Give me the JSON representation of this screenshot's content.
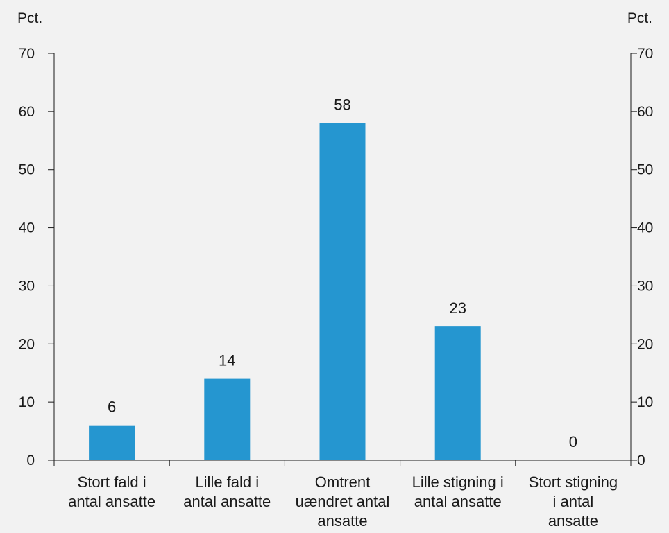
{
  "chart_data": {
    "type": "bar",
    "categories": [
      [
        "Stort fald i",
        "antal ansatte"
      ],
      [
        "Lille fald i",
        "antal ansatte"
      ],
      [
        "Omtrent",
        "uændret antal",
        "ansatte"
      ],
      [
        "Lille stigning i",
        "antal ansatte"
      ],
      [
        "Stort stigning",
        "i antal",
        "ansatte"
      ]
    ],
    "values": [
      6,
      14,
      58,
      23,
      0
    ],
    "data_labels": [
      "6",
      "14",
      "58",
      "23",
      "0"
    ],
    "y_unit_left": "Pct.",
    "y_unit_right": "Pct.",
    "ylim": [
      0,
      70
    ],
    "yticks": [
      0,
      10,
      20,
      30,
      40,
      50,
      60,
      70
    ],
    "grid": false,
    "legend": "none",
    "bar_color": "#2596d0",
    "axis_color": "#1a1a1a",
    "background": "#f2f2f2"
  }
}
